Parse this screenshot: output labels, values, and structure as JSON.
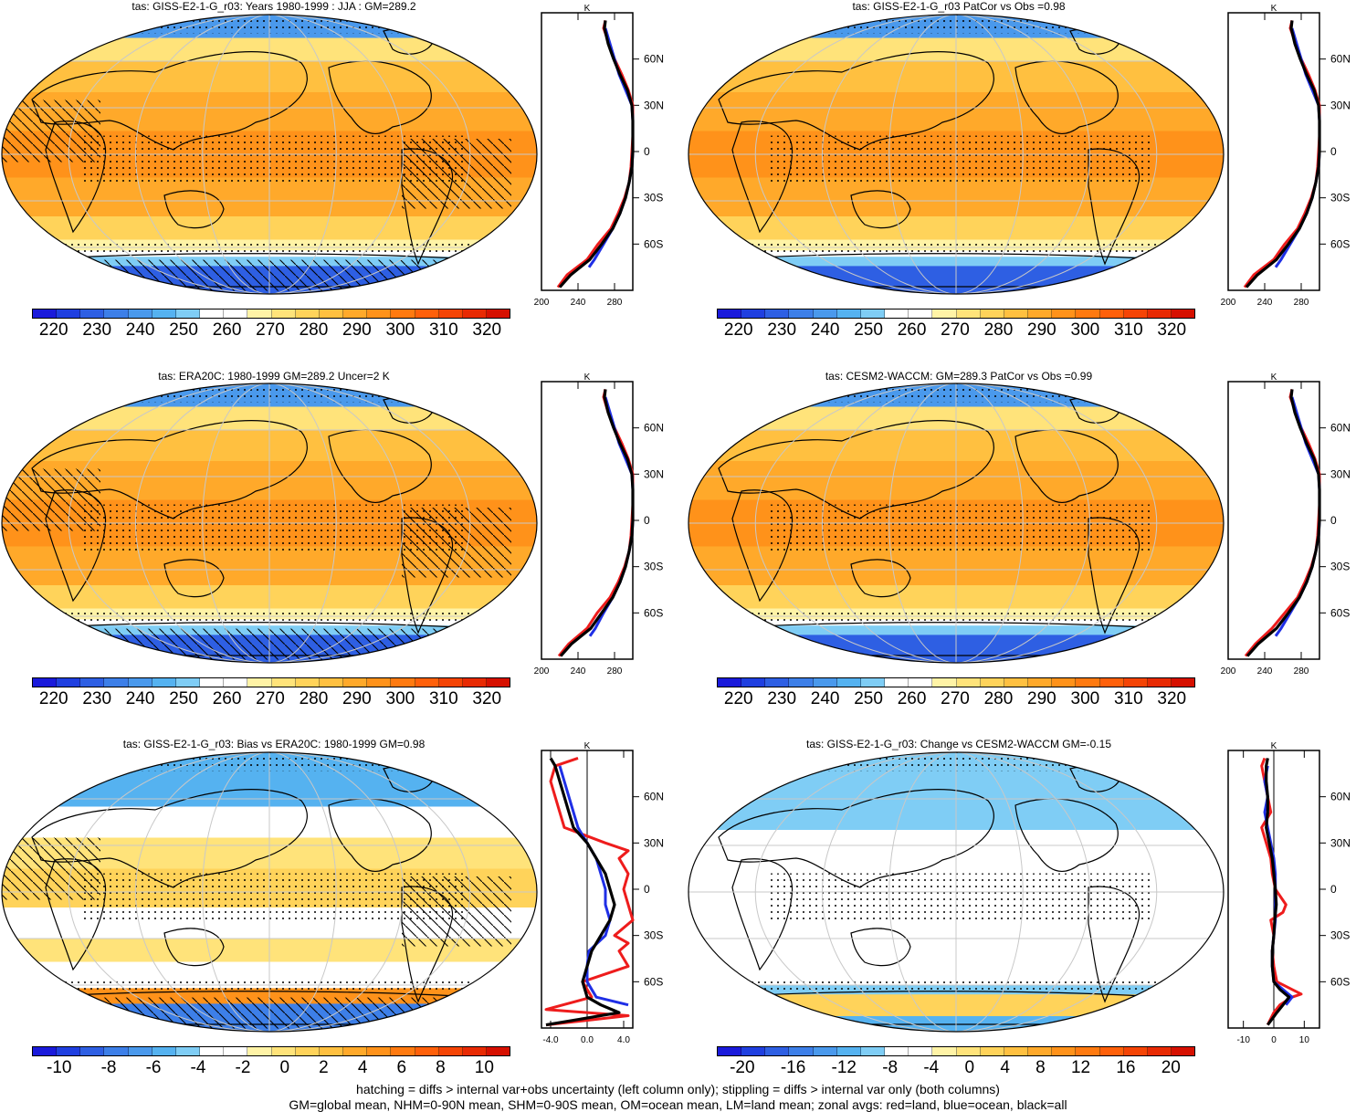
{
  "panels": [
    {
      "id": "p1",
      "title": "tas: GISS-E2-1-G_r03: Years 1980-1999 : JJA : GM=289.2",
      "scheme": "abs",
      "hatch": true
    },
    {
      "id": "p2",
      "title": "tas: GISS-E2-1-G_r03 PatCor vs Obs =0.98",
      "scheme": "abs",
      "hatch": false
    },
    {
      "id": "p3",
      "title": "tas: ERA20C: 1980-1999 GM=289.2 Uncer=2 K",
      "scheme": "abs",
      "hatch": true
    },
    {
      "id": "p4",
      "title": "tas: CESM2-WACCM: GM=289.3 PatCor vs Obs =0.99",
      "scheme": "abs",
      "hatch": false
    },
    {
      "id": "p5",
      "title": "tas: GISS-E2-1-G_r03: Bias vs ERA20C: 1980-1999 GM=0.98",
      "scheme": "bias",
      "hatch": true
    },
    {
      "id": "p6",
      "title": "tas: GISS-E2-1-G_r03: Change vs CESM2-WACCM GM=-0.15",
      "scheme": "change",
      "hatch": false
    }
  ],
  "colorbars": {
    "abs": {
      "labels": [
        "220",
        "230",
        "240",
        "250",
        "260",
        "270",
        "280",
        "290",
        "300",
        "310",
        "320"
      ],
      "colors": [
        "#1a1adb",
        "#1f3fe0",
        "#2e5fe3",
        "#3d7fe8",
        "#4a99ec",
        "#55b2f0",
        "#7fcdf5",
        "#ffffff",
        "#ffffff",
        "#fff3a6",
        "#ffe37a",
        "#ffd35a",
        "#ffc040",
        "#ffa92a",
        "#ff921a",
        "#ff7a10",
        "#ff600a",
        "#f54405",
        "#e82a03",
        "#d61000"
      ]
    },
    "bias": {
      "labels": [
        "-10",
        "-8",
        "-6",
        "-4",
        "-2",
        "0",
        "2",
        "4",
        "6",
        "8",
        "10"
      ],
      "colors": [
        "#1a1adb",
        "#1f3fe0",
        "#2e5fe3",
        "#3d7fe8",
        "#4a99ec",
        "#55b2f0",
        "#7fcdf5",
        "#ffffff",
        "#ffffff",
        "#fff3a6",
        "#ffe37a",
        "#ffd35a",
        "#ffc040",
        "#ffa92a",
        "#ff921a",
        "#ff7a10",
        "#ff600a",
        "#f54405",
        "#e82a03",
        "#d61000"
      ]
    },
    "change": {
      "labels": [
        "-20",
        "-16",
        "-12",
        "-8",
        "-4",
        "0",
        "4",
        "8",
        "12",
        "16",
        "20"
      ],
      "colors": [
        "#1a1adb",
        "#1f3fe0",
        "#2e5fe3",
        "#3d7fe8",
        "#4a99ec",
        "#55b2f0",
        "#7fcdf5",
        "#ffffff",
        "#ffffff",
        "#fff3a6",
        "#ffe37a",
        "#ffd35a",
        "#ffc040",
        "#ffa92a",
        "#ff921a",
        "#ff7a10",
        "#ff600a",
        "#f54405",
        "#e82a03",
        "#d61000"
      ]
    }
  },
  "zonal": {
    "unit": "K",
    "lat_ticks": [
      "60N",
      "30N",
      "0",
      "30S",
      "60S"
    ],
    "lat_values": [
      60,
      30,
      0,
      -30,
      -60
    ],
    "abs_xticks": [
      "200",
      "240",
      "280"
    ],
    "abs_xvalues": [
      200,
      240,
      280
    ],
    "bias_xticks": [
      "-4.0",
      "0.0",
      "4.0"
    ],
    "bias_xvalues": [
      -4,
      0,
      4
    ],
    "change_xticks": [
      "-10",
      "0",
      "10"
    ],
    "change_xvalues": [
      -10,
      0,
      10
    ]
  },
  "chart_data": [
    {
      "type": "line",
      "panel": "p1",
      "xlabel": "K",
      "xlim": [
        200,
        300
      ],
      "ylim": [
        -90,
        90
      ],
      "series": [
        {
          "name": "land",
          "lat": [
            -88,
            -80,
            -70,
            -60,
            -50,
            -40,
            -30,
            -20,
            -10,
            0,
            10,
            20,
            30,
            40,
            50,
            60,
            70,
            80,
            85
          ],
          "values": [
            218,
            228,
            250,
            262,
            276,
            284,
            291,
            296,
            298,
            299,
            300,
            301,
            301,
            295,
            288,
            280,
            274,
            268,
            270
          ]
        },
        {
          "name": "ocean",
          "lat": [
            -75,
            -70,
            -60,
            -50,
            -40,
            -30,
            -20,
            -10,
            0,
            10,
            20,
            30,
            40,
            50,
            60,
            70,
            80
          ],
          "values": [
            252,
            258,
            268,
            278,
            286,
            292,
            296,
            299,
            300,
            300,
            300,
            299,
            292,
            285,
            280,
            275,
            270
          ]
        },
        {
          "name": "all",
          "lat": [
            -88,
            -80,
            -70,
            -60,
            -50,
            -40,
            -30,
            -20,
            -10,
            0,
            10,
            20,
            30,
            40,
            50,
            60,
            70,
            80,
            85
          ],
          "values": [
            220,
            232,
            253,
            266,
            278,
            286,
            292,
            296,
            299,
            300,
            300,
            300,
            299,
            294,
            286,
            279,
            273,
            269,
            270
          ]
        }
      ]
    },
    {
      "type": "line",
      "panel": "p2",
      "xlabel": "K",
      "xlim": [
        200,
        300
      ],
      "ylim": [
        -90,
        90
      ],
      "series": [
        {
          "name": "land",
          "lat": [
            -88,
            -80,
            -70,
            -60,
            -50,
            -40,
            -30,
            -20,
            -10,
            0,
            10,
            20,
            30,
            40,
            50,
            60,
            70,
            80,
            85
          ],
          "values": [
            218,
            228,
            250,
            262,
            276,
            284,
            291,
            296,
            298,
            299,
            300,
            301,
            301,
            295,
            288,
            280,
            274,
            268,
            270
          ]
        },
        {
          "name": "ocean",
          "lat": [
            -75,
            -70,
            -60,
            -50,
            -40,
            -30,
            -20,
            -10,
            0,
            10,
            20,
            30,
            40,
            50,
            60,
            70,
            80
          ],
          "values": [
            252,
            258,
            268,
            278,
            286,
            292,
            296,
            299,
            300,
            300,
            300,
            299,
            292,
            285,
            280,
            275,
            270
          ]
        },
        {
          "name": "all",
          "lat": [
            -88,
            -80,
            -70,
            -60,
            -50,
            -40,
            -30,
            -20,
            -10,
            0,
            10,
            20,
            30,
            40,
            50,
            60,
            70,
            80,
            85
          ],
          "values": [
            220,
            232,
            253,
            266,
            278,
            286,
            292,
            296,
            299,
            300,
            300,
            300,
            299,
            294,
            286,
            279,
            273,
            269,
            270
          ]
        }
      ]
    },
    {
      "type": "line",
      "panel": "p3",
      "xlabel": "K",
      "xlim": [
        200,
        300
      ],
      "ylim": [
        -90,
        90
      ],
      "series": [
        {
          "name": "land",
          "lat": [
            -88,
            -80,
            -70,
            -60,
            -50,
            -40,
            -30,
            -20,
            -10,
            0,
            10,
            20,
            30,
            40,
            50,
            60,
            70,
            80,
            85
          ],
          "values": [
            219,
            230,
            250,
            261,
            275,
            284,
            291,
            296,
            298,
            299,
            300,
            301,
            301,
            295,
            288,
            280,
            273,
            268,
            270
          ]
        },
        {
          "name": "ocean",
          "lat": [
            -75,
            -70,
            -60,
            -50,
            -40,
            -30,
            -20,
            -10,
            0,
            10,
            20,
            30,
            40,
            50,
            60,
            70,
            80
          ],
          "values": [
            253,
            259,
            268,
            278,
            286,
            292,
            296,
            299,
            300,
            300,
            300,
            299,
            292,
            285,
            280,
            275,
            270
          ]
        },
        {
          "name": "all",
          "lat": [
            -88,
            -80,
            -70,
            -60,
            -50,
            -40,
            -30,
            -20,
            -10,
            0,
            10,
            20,
            30,
            40,
            50,
            60,
            70,
            80,
            85
          ],
          "values": [
            221,
            233,
            254,
            266,
            278,
            286,
            292,
            296,
            299,
            300,
            300,
            300,
            299,
            294,
            286,
            279,
            273,
            269,
            270
          ]
        }
      ]
    },
    {
      "type": "line",
      "panel": "p4",
      "xlabel": "K",
      "xlim": [
        200,
        300
      ],
      "ylim": [
        -90,
        90
      ],
      "series": [
        {
          "name": "land",
          "lat": [
            -88,
            -80,
            -70,
            -60,
            -50,
            -40,
            -30,
            -20,
            -10,
            0,
            10,
            20,
            30,
            40,
            50,
            60,
            70,
            80,
            85
          ],
          "values": [
            219,
            230,
            248,
            262,
            276,
            284,
            291,
            296,
            298,
            299,
            300,
            301,
            301,
            295,
            288,
            280,
            274,
            268,
            270
          ]
        },
        {
          "name": "ocean",
          "lat": [
            -75,
            -70,
            -60,
            -50,
            -40,
            -30,
            -20,
            -10,
            0,
            10,
            20,
            30,
            40,
            50,
            60,
            70,
            80
          ],
          "values": [
            252,
            258,
            268,
            278,
            286,
            292,
            296,
            299,
            300,
            300,
            300,
            299,
            292,
            285,
            280,
            275,
            270
          ]
        },
        {
          "name": "all",
          "lat": [
            -88,
            -80,
            -70,
            -60,
            -50,
            -40,
            -30,
            -20,
            -10,
            0,
            10,
            20,
            30,
            40,
            50,
            60,
            70,
            80,
            85
          ],
          "values": [
            221,
            233,
            253,
            266,
            278,
            286,
            292,
            296,
            299,
            300,
            300,
            300,
            299,
            294,
            286,
            279,
            273,
            269,
            270
          ]
        }
      ]
    },
    {
      "type": "line",
      "panel": "p5",
      "xlabel": "K",
      "xlim": [
        -5,
        5
      ],
      "ylim": [
        -90,
        90
      ],
      "series": [
        {
          "name": "land",
          "lat": [
            -88,
            -82,
            -78,
            -70,
            -60,
            -50,
            -40,
            -35,
            -30,
            -20,
            -10,
            0,
            10,
            20,
            25,
            30,
            40,
            50,
            60,
            70,
            80,
            85
          ],
          "values": [
            -4.5,
            4.5,
            -4.5,
            0.5,
            -0.5,
            4.5,
            3.5,
            4.5,
            3.0,
            5,
            4.5,
            4.0,
            4.5,
            3.5,
            4.5,
            2.0,
            -2.5,
            -3.0,
            -3.5,
            -4.0,
            -3.5,
            -1.0
          ]
        },
        {
          "name": "ocean",
          "lat": [
            -75,
            -70,
            -60,
            -50,
            -40,
            -30,
            -20,
            -10,
            0,
            10,
            20,
            30,
            40,
            50,
            60,
            70,
            80
          ],
          "values": [
            4.5,
            1.0,
            0.0,
            0.0,
            0.2,
            2.0,
            2.5,
            2.0,
            2.0,
            1.5,
            1.0,
            0.0,
            -1.0,
            -1.5,
            -2.0,
            -2.5,
            -3.0
          ]
        },
        {
          "name": "all",
          "lat": [
            -88,
            -80,
            -75,
            -70,
            -60,
            -50,
            -40,
            -30,
            -20,
            -10,
            0,
            10,
            20,
            30,
            40,
            50,
            60,
            70,
            80,
            85
          ],
          "values": [
            -4.5,
            3.5,
            1.5,
            0.0,
            -0.5,
            0.0,
            0.5,
            1.5,
            2.5,
            3.0,
            2.5,
            2.0,
            1.0,
            0.0,
            -1.5,
            -2.0,
            -2.5,
            -3.0,
            -3.5,
            -4.0
          ]
        }
      ]
    },
    {
      "type": "line",
      "panel": "p6",
      "xlabel": "K",
      "xlim": [
        -15,
        15
      ],
      "ylim": [
        -90,
        90
      ],
      "series": [
        {
          "name": "land",
          "lat": [
            -88,
            -80,
            -75,
            -70,
            -68,
            -65,
            -60,
            -50,
            -40,
            -30,
            -20,
            -15,
            -10,
            0,
            10,
            20,
            30,
            40,
            50,
            60,
            70,
            80,
            85
          ],
          "values": [
            -2,
            0,
            2,
            6,
            9,
            6,
            1,
            0,
            -0.5,
            0,
            -1,
            3,
            4,
            0.5,
            -0.5,
            -1,
            -2.5,
            -4,
            -1,
            -2,
            -3,
            -4,
            -3
          ]
        },
        {
          "name": "ocean",
          "lat": [
            -75,
            -70,
            -65,
            -60,
            -50,
            -40,
            -30,
            -20,
            -10,
            0,
            10,
            20,
            30,
            40,
            50,
            60,
            70,
            80
          ],
          "values": [
            4,
            6,
            3,
            0,
            -0.5,
            -0.5,
            0,
            0.5,
            0.5,
            0.5,
            0.5,
            0,
            -1,
            -2,
            -3,
            -2,
            -3,
            -2
          ]
        },
        {
          "name": "all",
          "lat": [
            -88,
            -80,
            -75,
            -70,
            -65,
            -60,
            -50,
            -40,
            -30,
            -20,
            -10,
            0,
            10,
            20,
            30,
            40,
            50,
            60,
            70,
            80,
            85
          ],
          "values": [
            -2,
            1,
            3,
            5,
            2,
            0,
            -0.5,
            -0.5,
            0,
            0.3,
            0.8,
            0.5,
            0,
            -0.5,
            -1.5,
            -2.5,
            -2,
            -2,
            -2.5,
            -2.5,
            -2
          ]
        }
      ]
    }
  ],
  "footer": {
    "line1": "hatching = diffs > internal var+obs uncertainty (left column only); stippling = diffs > internal var only (both columns)",
    "line2": "GM=global mean, NHM=0-90N mean, SHM=0-90S mean, OM=ocean mean, LM=land mean; zonal avgs: red=land, blue=ocean, black=all"
  }
}
